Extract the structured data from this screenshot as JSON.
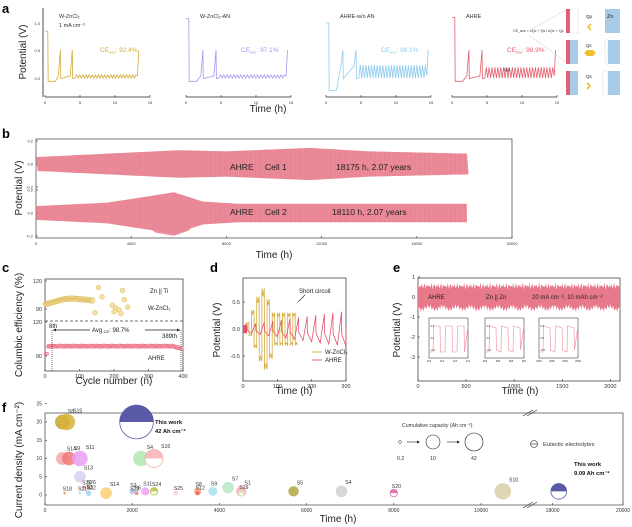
{
  "panel_labels": [
    "a",
    "b",
    "c",
    "d",
    "e",
    "f"
  ],
  "chart_data": [
    {
      "panel": "a",
      "type": "line",
      "ylabel": "Potential (V)",
      "xlabel": "Time (h)",
      "yticks": [
        "0.0",
        "0.5",
        "1.0"
      ],
      "xticks": [
        "0",
        "5",
        "10",
        "15"
      ],
      "xlim": [
        0,
        15
      ],
      "ylim": [
        -0.3,
        1.3
      ],
      "subplots": [
        {
          "name": "W-ZnCl2",
          "title": "W-ZnCl₂",
          "subtitle": "1 mA cm⁻²",
          "ce_label": "CE",
          "ce_sub": "ave",
          "ce_value": ": 92.4%",
          "color": "#d4aa3a",
          "end_time": 13.4,
          "first_peak": 0.85
        },
        {
          "name": "W-ZnCl2-AN",
          "title": "W-ZnCl₂-AN",
          "subtitle": "",
          "ce_label": "CE",
          "ce_sub": "ave",
          "ce_value": ": 97.1%",
          "color": "#a09af0",
          "end_time": 14.5,
          "first_peak": 1.08
        },
        {
          "name": "AHRE-w/o AN",
          "title": "AHRE-w/o AN",
          "subtitle": "",
          "ce_label": "CE",
          "ce_sub": "ave",
          "ce_value": ": 98.1%",
          "color": "#8ecbef",
          "end_time": 14.6,
          "first_peak": 1.0
        },
        {
          "name": "AHRE",
          "title": "AHRE",
          "subtitle": "",
          "ce_label": "CE",
          "ce_sub": "ave",
          "ce_value": ": 98.9%",
          "color": "#e4606f",
          "end_time": 14.8,
          "first_peak": 1.1
        }
      ],
      "formula": "CE_ave = nQc + Qs / nQc + Qp",
      "annotations": [
        "Qp",
        "Qc",
        "Qs"
      ],
      "schematic": {
        "labels": [
          "Qp",
          "Qc",
          "Qs"
        ],
        "metal": "Zn"
      }
    },
    {
      "panel": "b",
      "type": "area",
      "ylabel": "Potential (V)",
      "xlabel": "Time (h)",
      "xlim": [
        0,
        20000
      ],
      "xticks": [
        "0",
        "4000",
        "8000",
        "12000",
        "16000",
        "20000"
      ],
      "yticks": [
        "-0.2",
        "0.0",
        "0.2"
      ],
      "series": [
        {
          "name": "Cell 1",
          "electrolyte": "AHRE",
          "duration_h": 18175,
          "label": "18175 h, 2.07 years",
          "amplitude_V": [
            [
              0,
              0.06
            ],
            [
              2000,
              0.08
            ],
            [
              6000,
              0.12
            ],
            [
              8000,
              0.11
            ],
            [
              11500,
              0.14
            ],
            [
              14000,
              0.11
            ],
            [
              18175,
              0.09
            ]
          ]
        },
        {
          "name": "Cell 2",
          "electrolyte": "AHRE",
          "duration_h": 18110,
          "label": "18110 h, 2.07 years",
          "amplitude_V": [
            [
              0,
              0.06
            ],
            [
              3000,
              0.09
            ],
            [
              5800,
              0.18
            ],
            [
              7000,
              0.1
            ],
            [
              8500,
              0.08
            ],
            [
              18110,
              0.08
            ]
          ]
        }
      ],
      "color": "#e8798a"
    },
    {
      "panel": "c",
      "type": "scatter",
      "ylabel": "Columbic efficiency (%)",
      "xlabel": "Cycle number (n)",
      "xlim": [
        0,
        400
      ],
      "xticks": [
        "0",
        "100",
        "200",
        "300",
        "400"
      ],
      "upper": {
        "name": "W-ZnCl2",
        "label": "W-ZnCl₂",
        "yticks": [
          "90",
          "120"
        ],
        "ylim": [
          80,
          125
        ],
        "color": "#d4aa3a",
        "points": [
          [
            5,
            95
          ],
          [
            20,
            97
          ],
          [
            40,
            100
          ],
          [
            60,
            101
          ],
          [
            80,
            100
          ],
          [
            90,
            102
          ],
          [
            100,
            99
          ],
          [
            120,
            97
          ],
          [
            140,
            96
          ],
          [
            145,
            86
          ],
          [
            155,
            113
          ],
          [
            165,
            103
          ],
          [
            195,
            94
          ],
          [
            205,
            91
          ],
          [
            215,
            89
          ],
          [
            225,
            110
          ],
          [
            230,
            100
          ],
          [
            240,
            92
          ],
          [
            200,
            87
          ],
          [
            220,
            85
          ]
        ]
      },
      "lower": {
        "name": "AHRE",
        "label": "AHRE",
        "yticks": [
          "90",
          "120"
        ],
        "ylim": [
          80,
          125
        ],
        "color": "#e8506a",
        "mean": 98.7
      },
      "system": "Zn || Ti",
      "avg_label": "Avg",
      "avg_sub": "-CE",
      "avg_value": ": 98.7%",
      "start_cycle": "8th",
      "end_cycle": "389th"
    },
    {
      "panel": "d",
      "type": "line",
      "ylabel": "Potential (V)",
      "xlabel": "Time (h)",
      "xlim": [
        0,
        300
      ],
      "ylim": [
        -0.95,
        0.95
      ],
      "xticks": [
        "0",
        "100",
        "200",
        "300"
      ],
      "yticks": [
        "-0.5",
        "0.0",
        "0.5"
      ],
      "annotation": "Short circuit",
      "series": [
        {
          "name": "W-ZnCl2",
          "label": "W-ZnCl₂",
          "color": "#d4aa3a"
        },
        {
          "name": "AHRE",
          "label": "AHRE",
          "color": "#e8506a"
        }
      ]
    },
    {
      "panel": "e",
      "type": "line",
      "ylabel": "Potential (V)",
      "xlabel": "Time (h)",
      "xlim": [
        0,
        2100
      ],
      "ylim": [
        -3.3,
        1.1
      ],
      "xticks": [
        "0",
        "500",
        "1000",
        "1500",
        "2000"
      ],
      "yticks": [
        "-3",
        "-2",
        "-1",
        "0",
        "1"
      ],
      "labels": [
        "AHRE",
        "Zn || Zn",
        "20 mA cm⁻², 10 mAh cm⁻²"
      ],
      "band_amplitude_V": 0.55,
      "color": "#e8798a",
      "insets": [
        {
          "xticks": [
            "118",
            "119",
            "120",
            "121"
          ],
          "yticks": [
            "0.5",
            "0.0",
            "-0.5"
          ]
        },
        {
          "xticks": [
            "994",
            "995",
            "996",
            "997"
          ],
          "yticks": [
            "0.5",
            "0.0",
            "-0.5"
          ]
        },
        {
          "xticks": [
            "2081",
            "2082",
            "2083",
            "2084"
          ],
          "yticks": [
            "0.5",
            "0.0",
            "-0.5"
          ]
        }
      ]
    },
    {
      "panel": "f",
      "type": "scatter",
      "ylabel": "Current density (mA cm⁻²)",
      "xlabel": "Time (h)",
      "xticks": [
        "0",
        "2000",
        "4000",
        "6000",
        "8000",
        "10000",
        "18000",
        "20000"
      ],
      "yticks": [
        "0",
        "5",
        "10",
        "15",
        "20",
        "25"
      ],
      "ylim": [
        -3,
        25
      ],
      "axis_break": [
        11500,
        17300
      ],
      "legend_title": "Cumulative capacity (Ah cm⁻²)",
      "legend_sizes": [
        "0.2",
        "10",
        "42"
      ],
      "legend_eutectic": "Eutectic electrolytes",
      "this_work_1": {
        "line1": "This work",
        "line2": "42 Ah cm⁻²"
      },
      "this_work_2": {
        "line1": "This work",
        "line2": "9.09 Ah cm⁻²"
      },
      "points": [
        {
          "label": "S8",
          "x": 400,
          "y": 20,
          "cap": 8,
          "color": "#c3a52a",
          "eutectic": false
        },
        {
          "label": "S15",
          "x": 500,
          "y": 20,
          "cap": 10,
          "color": "#d8b23a",
          "eutectic": false
        },
        {
          "label": "S14",
          "x": 400,
          "y": 10,
          "cap": 6,
          "color": "#f4a4a8",
          "eutectic": false
        },
        {
          "label": "S9",
          "x": 550,
          "y": 10,
          "cap": 7,
          "color": "#f07878",
          "eutectic": false
        },
        {
          "label": "S11",
          "x": 800,
          "y": 10,
          "cap": 9,
          "color": "#e8a0f0",
          "eutectic": false
        },
        {
          "label": "S13",
          "x": 800,
          "y": 5,
          "cap": 5,
          "color": "#d8d0f0",
          "eutectic": false
        },
        {
          "label": "S20",
          "x": 900,
          "y": 2,
          "cap": 0.4,
          "color": "#e89ab0",
          "eutectic": true
        },
        {
          "label": "S26",
          "x": 1000,
          "y": 2,
          "cap": 0.6,
          "color": "#f8c8a8",
          "eutectic": false
        },
        {
          "label": "S18",
          "x": 450,
          "y": 0.5,
          "cap": 0.15,
          "color": "#f08030",
          "eutectic": false
        },
        {
          "label": "S21",
          "x": 800,
          "y": 0.5,
          "cap": 0.1,
          "color": "#a0d0f0",
          "eutectic": false
        },
        {
          "label": "S22",
          "x": 1000,
          "y": 0.5,
          "cap": 0.8,
          "color": "#c8e0f8",
          "eutectic": true
        },
        {
          "label": "S3",
          "x": 1000,
          "y": 0.5,
          "cap": 1,
          "color": "#a0d8f0",
          "eutectic": false
        },
        {
          "label": "S14",
          "x": 1400,
          "y": 0.5,
          "cap": 5,
          "color": "#f8d070",
          "eutectic": false
        },
        {
          "label": "S2",
          "x": 2000,
          "y": 1,
          "cap": 1.2,
          "color": "#a8c8f0",
          "eutectic": false
        },
        {
          "label": "S23",
          "x": 2000,
          "y": 0.5,
          "cap": 0.3,
          "color": "#c8c8f0",
          "eutectic": false
        },
        {
          "label": "S6",
          "x": 2100,
          "y": 0.5,
          "cap": 0.6,
          "color": "#f08080",
          "eutectic": false
        },
        {
          "label": "S11",
          "x": 2300,
          "y": 1,
          "cap": 2.5,
          "color": "#f0a0f0",
          "eutectic": false
        },
        {
          "label": "S24",
          "x": 2500,
          "y": 1,
          "cap": 2,
          "color": "#b8c040",
          "eutectic": true
        },
        {
          "label": "S4",
          "x": 2200,
          "y": 10,
          "cap": 9,
          "color": "#b0e8b0",
          "eutectic": false
        },
        {
          "label": "S16",
          "x": 2500,
          "y": 10,
          "cap": 12,
          "color": "#f8b0b0",
          "eutectic": true
        },
        {
          "label": "S25",
          "x": 3000,
          "y": 0.5,
          "cap": 0.4,
          "color": "#f8c0c0",
          "eutectic": true
        },
        {
          "label": "S8",
          "x": 3500,
          "y": 1,
          "cap": 2,
          "color": "#f8a888",
          "eutectic": false
        },
        {
          "label": "S12",
          "x": 3500,
          "y": 0.5,
          "cap": 0.6,
          "color": "#f06060",
          "eutectic": false
        },
        {
          "label": "S9",
          "x": 3850,
          "y": 1,
          "cap": 3,
          "color": "#a8e0f0",
          "eutectic": false
        },
        {
          "label": "S7",
          "x": 4200,
          "y": 2,
          "cap": 5,
          "color": "#b8e8c8",
          "eutectic": false
        },
        {
          "label": "S1",
          "x": 4500,
          "y": 1,
          "cap": 4,
          "color": "#f8b0b8",
          "eutectic": false
        },
        {
          "label": "S19",
          "x": 4500,
          "y": 0.5,
          "cap": 1,
          "color": "#c8e8a8",
          "eutectic": true
        },
        {
          "label": "S5",
          "x": 5700,
          "y": 1,
          "cap": 4,
          "color": "#b0a840",
          "eutectic": false
        },
        {
          "label": "S4",
          "x": 6800,
          "y": 1,
          "cap": 5,
          "color": "#d0d0d0",
          "eutectic": false
        },
        {
          "label": "S20",
          "x": 8000,
          "y": 0.5,
          "cap": 2,
          "color": "#d860a0",
          "eutectic": true
        },
        {
          "label": "S10",
          "x": 10500,
          "y": 1,
          "cap": 10,
          "color": "#d8d0a8",
          "eutectic": false
        },
        {
          "label": "This work",
          "x": 18175,
          "y": 1,
          "cap": 9.09,
          "color": "#5a5aa8",
          "eutectic": true
        },
        {
          "label": "This work",
          "x": 2100,
          "y": 20,
          "cap": 42,
          "color": "#5a5aa8",
          "eutectic": true
        }
      ]
    }
  ]
}
